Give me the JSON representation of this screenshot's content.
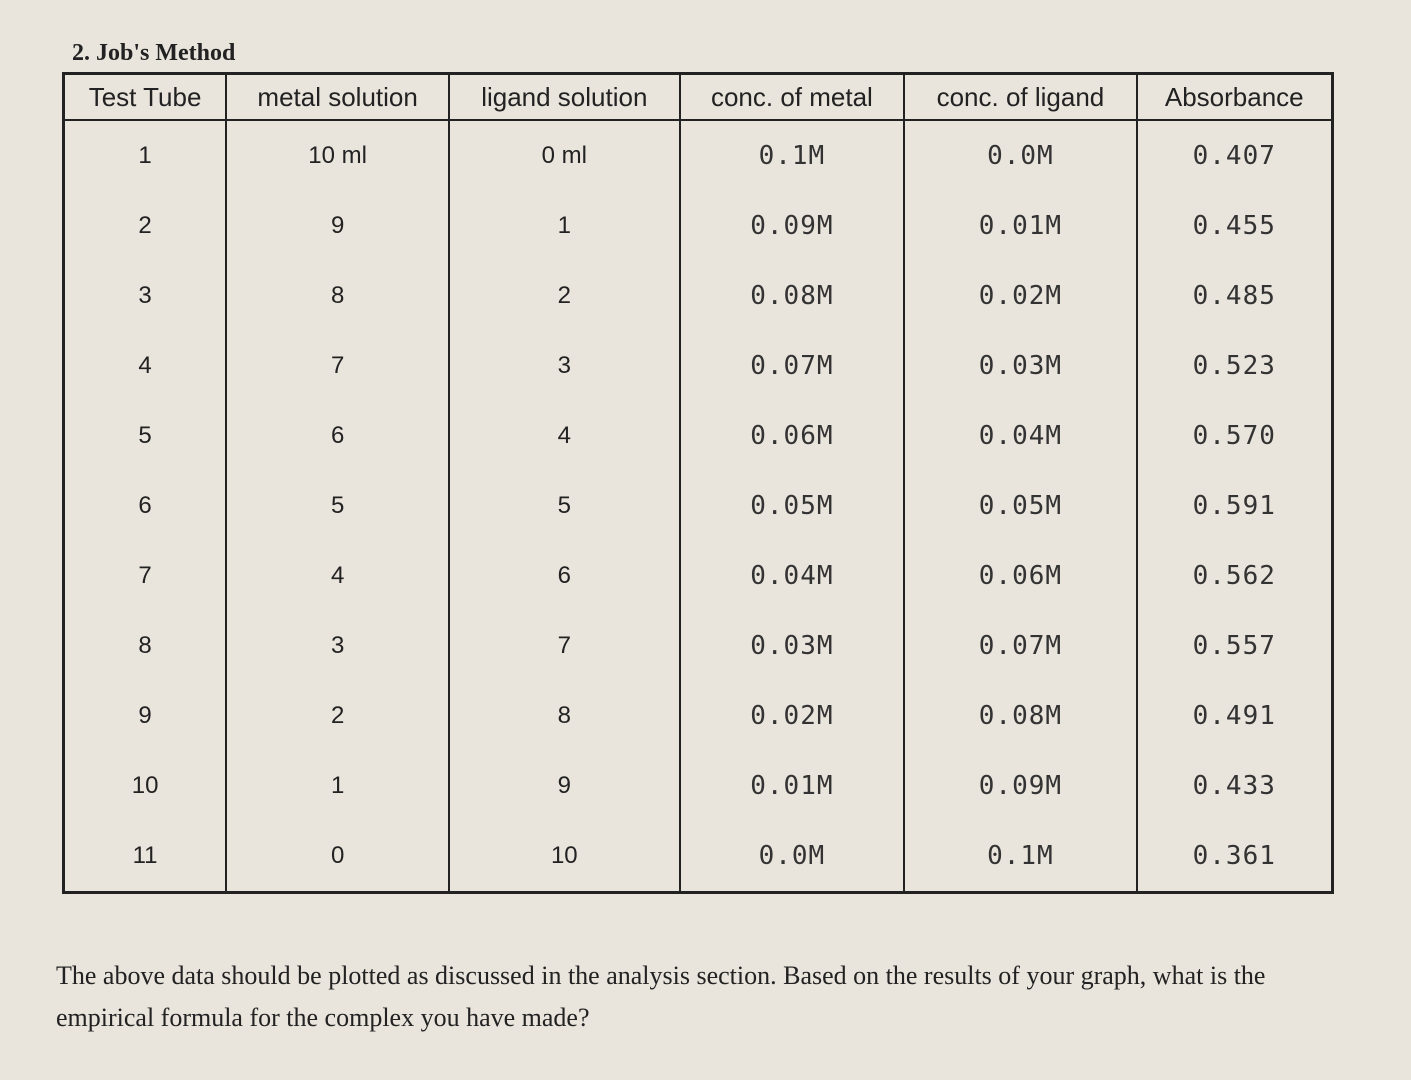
{
  "heading": "2. Job's Method",
  "table": {
    "headers": [
      "Test Tube",
      "metal solution",
      "ligand solution",
      "conc. of metal",
      "conc. of ligand",
      "Absorbance"
    ],
    "rows": [
      [
        "1",
        "10 ml",
        "0 ml",
        "0.1M",
        "0.0M",
        "0.407"
      ],
      [
        "2",
        "9",
        "1",
        "0.09M",
        "0.01M",
        "0.455"
      ],
      [
        "3",
        "8",
        "2",
        "0.08M",
        "0.02M",
        "0.485"
      ],
      [
        "4",
        "7",
        "3",
        "0.07M",
        "0.03M",
        "0.523"
      ],
      [
        "5",
        "6",
        "4",
        "0.06M",
        "0.04M",
        "0.570"
      ],
      [
        "6",
        "5",
        "5",
        "0.05M",
        "0.05M",
        "0.591"
      ],
      [
        "7",
        "4",
        "6",
        "0.04M",
        "0.06M",
        "0.562"
      ],
      [
        "8",
        "3",
        "7",
        "0.03M",
        "0.07M",
        "0.557"
      ],
      [
        "9",
        "2",
        "8",
        "0.02M",
        "0.08M",
        "0.491"
      ],
      [
        "10",
        "1",
        "9",
        "0.01M",
        "0.09M",
        "0.433"
      ],
      [
        "11",
        "0",
        "10",
        "0.0M",
        "0.1M",
        "0.361"
      ]
    ]
  },
  "footer": "The above data should be plotted as discussed in the analysis section. Based on the results of your graph, what is the empirical formula for the complex you have made?"
}
